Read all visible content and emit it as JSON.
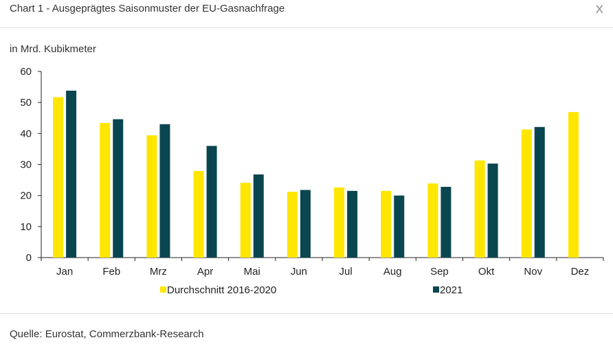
{
  "dialog": {
    "title": "Chart 1 - Ausgeprägtes Saisonmuster der EU-Gasnachfrage",
    "close_label": "X",
    "source": "Quelle: Eurostat, Commerzbank-Research"
  },
  "colors": {
    "series1": "#ffe600",
    "series2": "#0a4650",
    "axis": "#222222"
  },
  "chart_data": {
    "type": "bar",
    "title": "Chart 1 - Ausgeprägtes Saisonmuster der EU-Gasnachfrage",
    "ylabel": "in Mrd. Kubikmeter",
    "xlabel": "",
    "ylim": [
      0,
      60
    ],
    "yticks": [
      0,
      10,
      20,
      30,
      40,
      50,
      60
    ],
    "categories": [
      "Jan",
      "Feb",
      "Mrz",
      "Apr",
      "Mai",
      "Jun",
      "Jul",
      "Aug",
      "Sep",
      "Okt",
      "Nov",
      "Dez"
    ],
    "series": [
      {
        "name": "Durchschnitt 2016-2020",
        "values": [
          51.7,
          43.4,
          39.4,
          27.9,
          24.1,
          21.2,
          22.6,
          21.5,
          23.9,
          31.3,
          41.3,
          46.9
        ]
      },
      {
        "name": "2021",
        "values": [
          53.8,
          44.6,
          43.0,
          36.0,
          26.8,
          21.8,
          21.5,
          20.0,
          22.8,
          30.3,
          42.1,
          null
        ]
      }
    ],
    "legend": "bottom-center"
  }
}
